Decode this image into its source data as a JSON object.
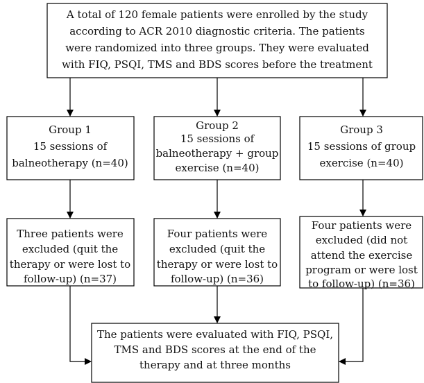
{
  "nodes": [
    {
      "lines": [
        "A total of 120 female patients were enrolled by the study",
        "according to ACR 2010 diagnostic criteria. The patients",
        "were randomized into three groups. They were evaluated",
        "with FIQ, PSQI, TMS and BDS scores before the treatment"
      ]
    },
    {
      "lines": [
        "Group 1",
        "15 sessions of",
        "balneotherapy (n=40)"
      ]
    },
    {
      "lines": [
        "Group 2",
        "15 sessions of",
        "balneotherapy + group",
        "exercise (n=40)"
      ]
    },
    {
      "lines": [
        "Group 3",
        "15 sessions of group",
        "exercise (n=40)"
      ]
    },
    {
      "lines": [
        "Three patients were",
        "excluded (quit the",
        "therapy or were lost to",
        "follow-up) (n=37)"
      ]
    },
    {
      "lines": [
        "Four patients were",
        "excluded (quit the",
        "therapy or were lost to",
        "follow-up) (n=36)"
      ]
    },
    {
      "lines": [
        "Four patients were",
        "excluded (did not",
        "attend the exercise",
        "program or were lost",
        "to follow-up) (n=36)"
      ]
    },
    {
      "lines": [
        "The patients were evaluated with FIQ, PSQI,",
        "TMS and BDS scores at the end of the",
        "therapy and at three months"
      ]
    }
  ]
}
